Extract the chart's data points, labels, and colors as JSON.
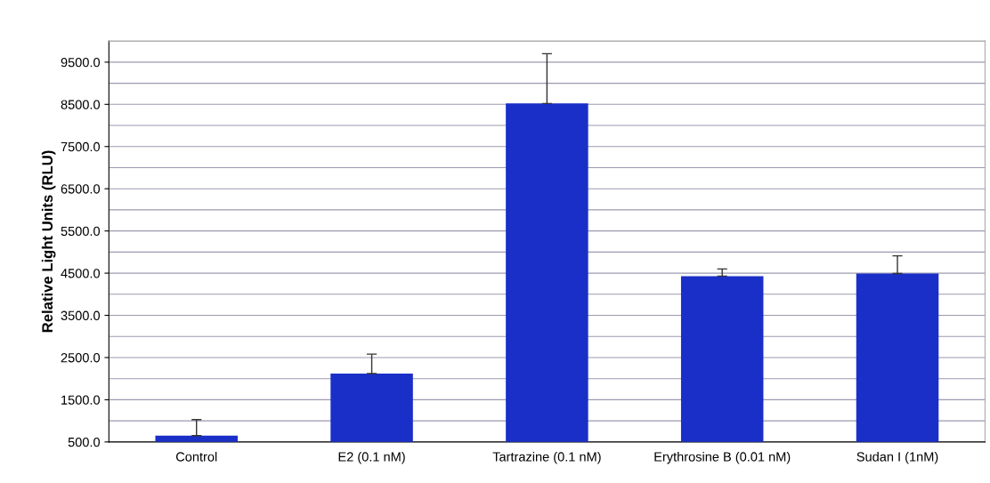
{
  "chart_data": {
    "type": "bar",
    "ylabel": "Relative Light Units (RLU)",
    "categories": [
      "Control",
      "E2 (0.1 nM)",
      "Tartrazine (0.1 nM)",
      "Erythrosine B (0.01 nM)",
      "Sudan I (1nM)"
    ],
    "values": [
      650,
      2120,
      8520,
      4430,
      4490
    ],
    "errors": [
      [
        650,
        1030
      ],
      [
        2120,
        2580
      ],
      [
        8520,
        9700
      ],
      [
        4430,
        4600
      ],
      [
        4490,
        4910
      ]
    ],
    "color": "#1a2fc8",
    "ylim": [
      500,
      10000
    ],
    "yticks": [
      {
        "value": 500,
        "label": "500.0"
      },
      {
        "value": 1000,
        "label": null
      },
      {
        "value": 1500,
        "label": "1500.0"
      },
      {
        "value": 2000,
        "label": null
      },
      {
        "value": 2500,
        "label": "2500.0"
      },
      {
        "value": 3000,
        "label": null
      },
      {
        "value": 3500,
        "label": "3500.0"
      },
      {
        "value": 4000,
        "label": null
      },
      {
        "value": 4500,
        "label": "4500.0"
      },
      {
        "value": 5000,
        "label": null
      },
      {
        "value": 5500,
        "label": "5500.0"
      },
      {
        "value": 6000,
        "label": null
      },
      {
        "value": 6500,
        "label": "6500.0"
      },
      {
        "value": 7000,
        "label": null
      },
      {
        "value": 7500,
        "label": "7500.0"
      },
      {
        "value": 8000,
        "label": null
      },
      {
        "value": 8500,
        "label": "8500.0"
      },
      {
        "value": 9000,
        "label": null
      },
      {
        "value": 9500,
        "label": "9500.0"
      },
      {
        "value": 10000,
        "label": null
      }
    ],
    "grid": "y"
  }
}
